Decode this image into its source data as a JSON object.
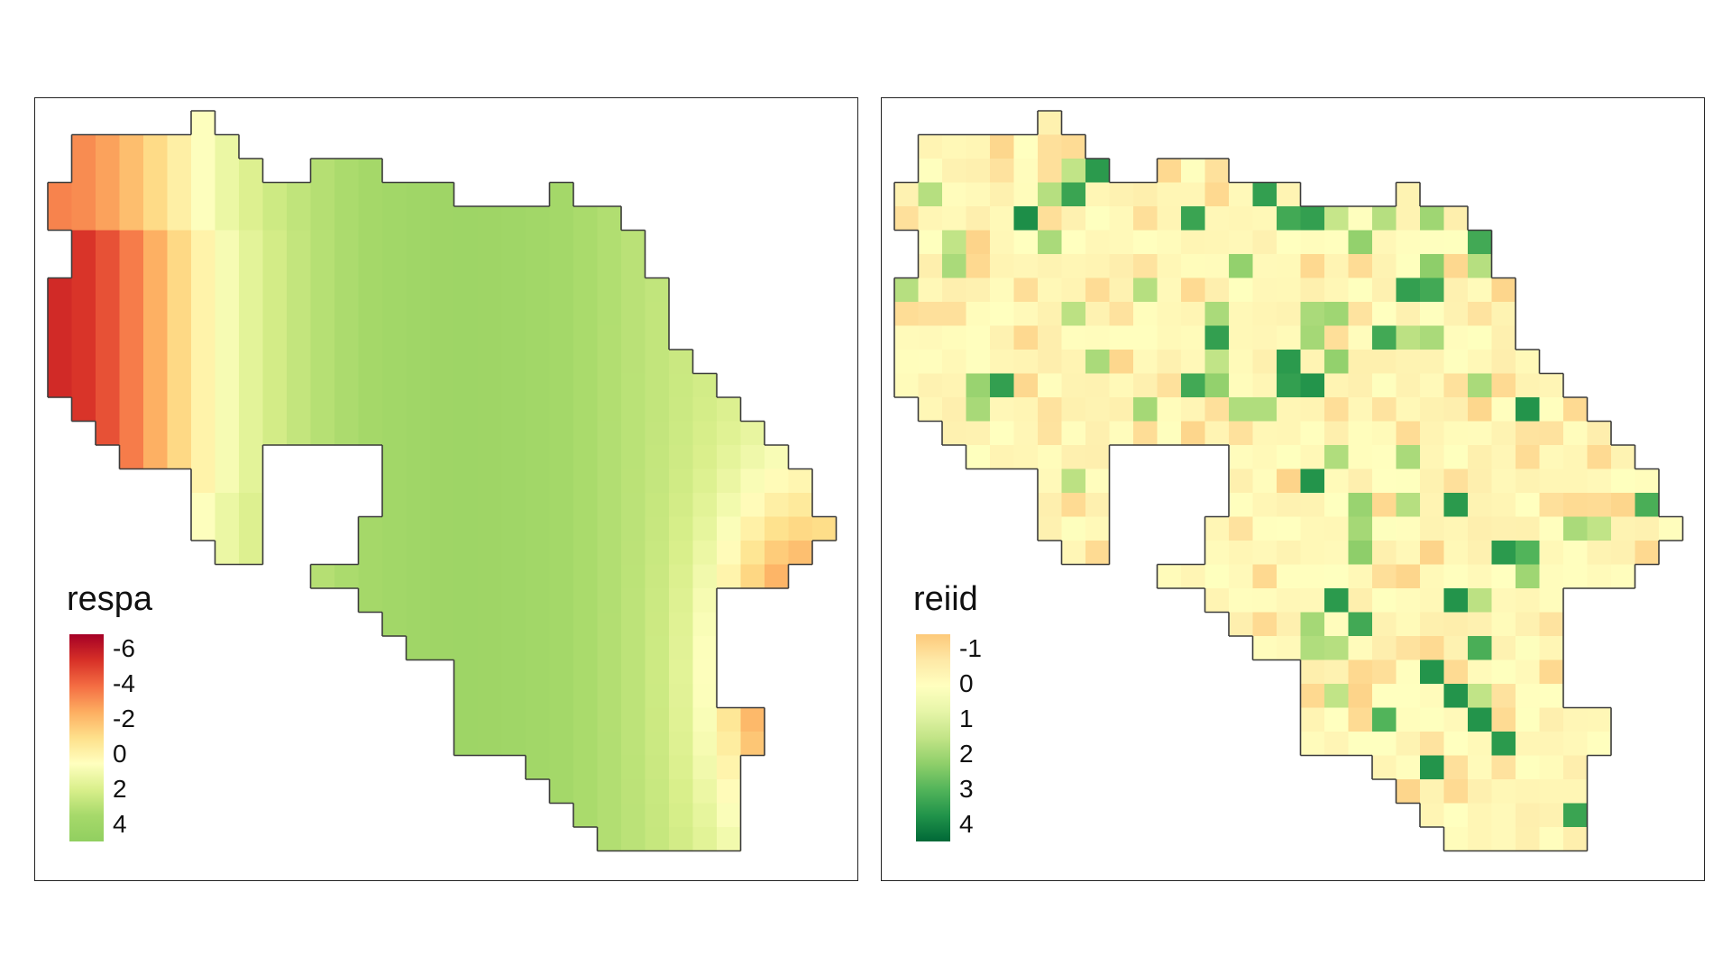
{
  "panels": [
    {
      "legend": {
        "title": "respa",
        "labels": [
          "-6",
          "-4",
          "-2",
          "0",
          "2",
          "4"
        ],
        "ramp": [
          "#a50026",
          "#d73027",
          "#f46d43",
          "#fdae61",
          "#fee08b",
          "#ffffbf",
          "#d9ef8b",
          "#a6d96a",
          "#91cf60"
        ]
      }
    },
    {
      "legend": {
        "title": "reiid",
        "labels": [
          "-1",
          "0",
          "1",
          "2",
          "3",
          "4"
        ],
        "ramp": [
          "#fdc97a",
          "#fee8a6",
          "#ffffbf",
          "#e6f5a8",
          "#c2e487",
          "#8fcf6a",
          "#52b45a",
          "#21934a",
          "#006837"
        ]
      }
    }
  ],
  "colors": {
    "border": "#3c3c3c"
  }
}
